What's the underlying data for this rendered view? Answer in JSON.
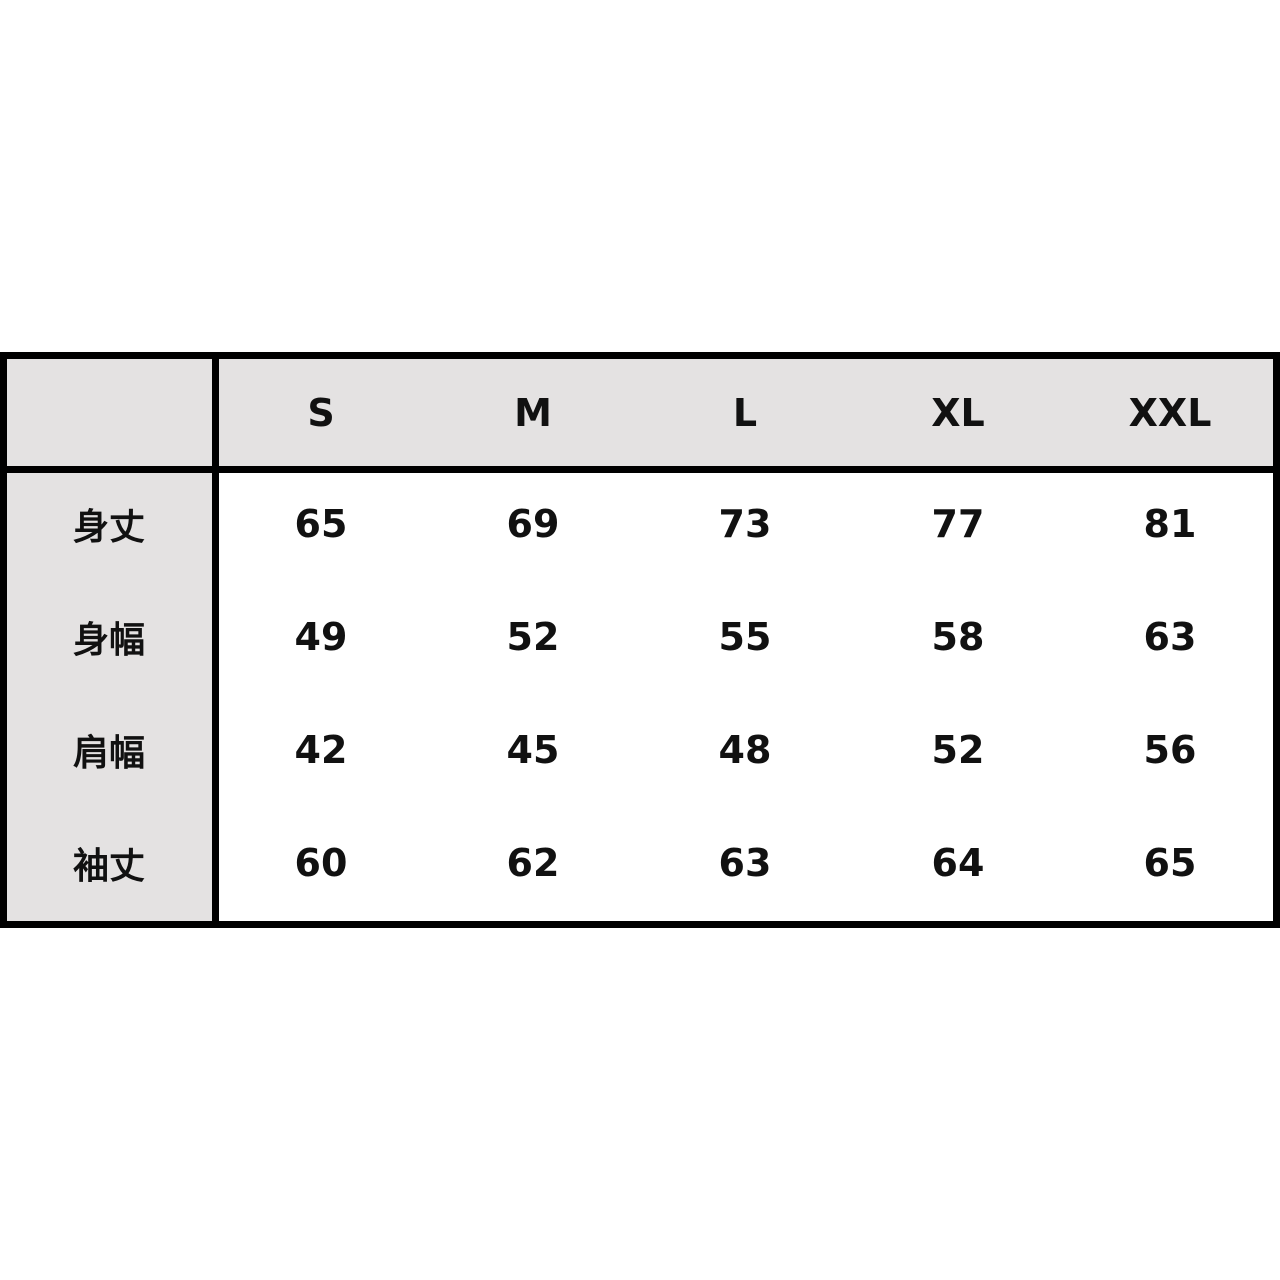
{
  "table": {
    "columns": [
      "S",
      "M",
      "L",
      "XL",
      "XXL"
    ],
    "rows": [
      {
        "label": "身丈",
        "values": [
          "65",
          "69",
          "73",
          "77",
          "81"
        ]
      },
      {
        "label": "身幅",
        "values": [
          "49",
          "52",
          "55",
          "58",
          "63"
        ]
      },
      {
        "label": "肩幅",
        "values": [
          "42",
          "45",
          "48",
          "52",
          "56"
        ]
      },
      {
        "label": "袖丈",
        "values": [
          "60",
          "62",
          "63",
          "64",
          "65"
        ]
      }
    ],
    "colors": {
      "header_bg": "#e4e2e2",
      "border": "#000000"
    }
  }
}
